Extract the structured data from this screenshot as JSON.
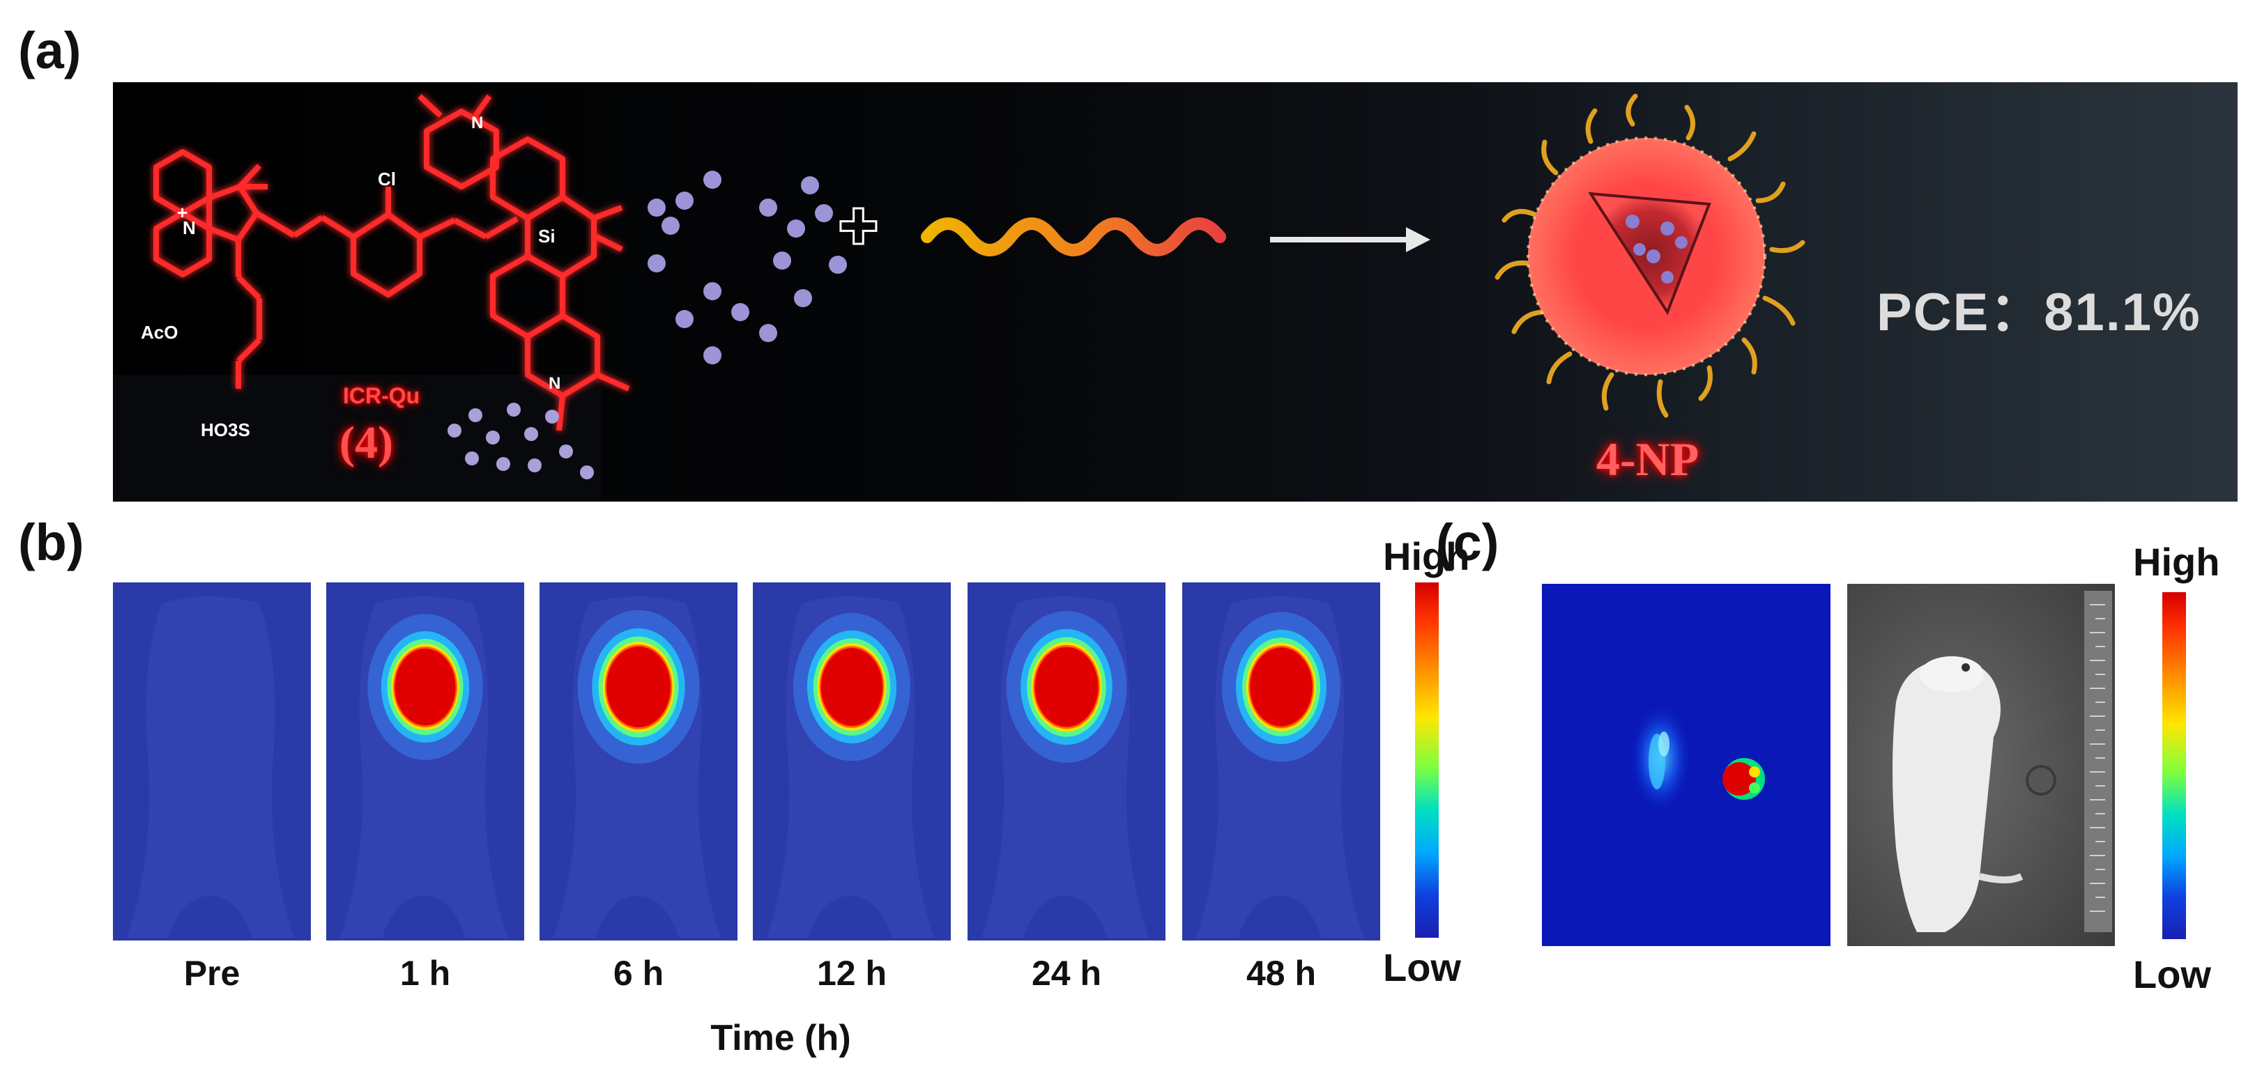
{
  "panels": {
    "a": {
      "label": "(a)"
    },
    "b": {
      "label": "(b)"
    },
    "c": {
      "label": "(c)"
    }
  },
  "scheme": {
    "molecule_name": "ICR-Qu",
    "molecule_number": "(4)",
    "substituent_acetate": "AcO",
    "substituent_sulfo": "HO3S",
    "substituent_cl": "Cl",
    "substituent_si": "Si",
    "substituent_n": "N",
    "charge_plus": "+",
    "plus_sign": "✚",
    "nanoparticle_label": "4-NP",
    "pce_text": "PCE：81.1%"
  },
  "imaging_b": {
    "timepoints": [
      "Pre",
      "1 h",
      "6 h",
      "12 h",
      "24 h",
      "48 h"
    ],
    "axis_title": "Time (h)",
    "colorbar_high": "High",
    "colorbar_low": "Low",
    "relative_tumor_signal": [
      0.0,
      0.8,
      1.0,
      0.85,
      0.95,
      0.9
    ]
  },
  "imaging_c": {
    "colorbar_high": "High",
    "colorbar_low": "Low"
  },
  "colors": {
    "fluorescence_background": "#2a3aa8",
    "tumor_hot": "#e00000",
    "molecule_glow": "#ff2020",
    "pce_text": "#dcdcdc"
  }
}
